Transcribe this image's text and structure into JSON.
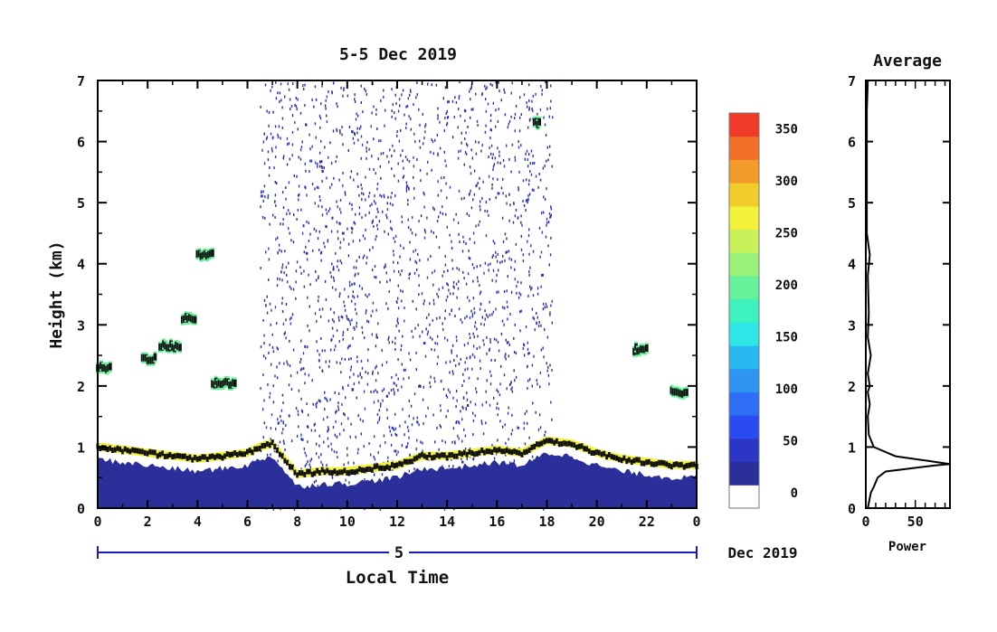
{
  "main_plot": {
    "title": "5-5 Dec 2019",
    "xlabel": "Local Time",
    "ylabel": "Height (km)",
    "day_label": "5",
    "date_suffix": "Dec 2019",
    "x_ticks": [
      "0",
      "2",
      "4",
      "6",
      "8",
      "10",
      "12",
      "14",
      "16",
      "18",
      "20",
      "22",
      "0"
    ],
    "y_ticks": [
      "0",
      "1",
      "2",
      "3",
      "4",
      "5",
      "6",
      "7"
    ]
  },
  "colorbar": {
    "tick_labels": [
      "0",
      "50",
      "100",
      "150",
      "200",
      "250",
      "300",
      "350"
    ],
    "colors": [
      "#ffffff",
      "#2b2f9a",
      "#2b36c4",
      "#2a4bf0",
      "#2f6ff5",
      "#2f94f2",
      "#2ab8f0",
      "#2ee6e6",
      "#3df2bf",
      "#66f29a",
      "#9af27a",
      "#c9f25a",
      "#f2f23a",
      "#f2cc2a",
      "#f29a2a",
      "#f2702a",
      "#f23a2a"
    ]
  },
  "profile_plot": {
    "title": "Average",
    "xlabel": "Power",
    "x_ticks": [
      "0",
      "50"
    ],
    "y_ticks": [
      "0",
      "1",
      "2",
      "3",
      "4",
      "5",
      "6",
      "7"
    ]
  },
  "chart_data": [
    {
      "type": "heatmap",
      "title": "5-5 Dec 2019",
      "xlabel": "Local Time",
      "ylabel": "Height (km)",
      "xlim": [
        0,
        24
      ],
      "ylim": [
        0,
        7
      ],
      "color_range": [
        0,
        380
      ],
      "grid": false,
      "boundary_layer_top_km": {
        "time_h": [
          0,
          1,
          2,
          3,
          4,
          5,
          6,
          6.5,
          7,
          7.5,
          8,
          9,
          10,
          11,
          12,
          13,
          14,
          15,
          16,
          17,
          18,
          19,
          20,
          21,
          22,
          23,
          24
        ],
        "height_km": [
          1.0,
          0.95,
          0.9,
          0.85,
          0.8,
          0.85,
          0.9,
          1.0,
          1.05,
          0.8,
          0.55,
          0.6,
          0.6,
          0.65,
          0.7,
          0.85,
          0.85,
          0.9,
          0.95,
          0.9,
          1.1,
          1.05,
          0.9,
          0.8,
          0.75,
          0.7,
          0.7
        ]
      },
      "elevated_layers": [
        {
          "time_start_h": 0.0,
          "time_end_h": 0.5,
          "height_km": 2.3
        },
        {
          "time_start_h": 1.8,
          "time_end_h": 2.3,
          "height_km": 2.45
        },
        {
          "time_start_h": 2.5,
          "time_end_h": 3.3,
          "height_km": 2.65
        },
        {
          "time_start_h": 3.4,
          "time_end_h": 3.9,
          "height_km": 3.1
        },
        {
          "time_start_h": 4.0,
          "time_end_h": 4.6,
          "height_km": 4.15
        },
        {
          "time_start_h": 4.6,
          "time_end_h": 5.5,
          "height_km": 2.05
        },
        {
          "time_start_h": 17.5,
          "time_end_h": 17.7,
          "height_km": 6.3
        },
        {
          "time_start_h": 21.5,
          "time_end_h": 22.0,
          "height_km": 2.6
        },
        {
          "time_start_h": 23.0,
          "time_end_h": 23.6,
          "height_km": 1.9
        }
      ],
      "noise_region_time_h": [
        6.5,
        18.2
      ]
    },
    {
      "type": "line",
      "title": "Average",
      "xlabel": "Power",
      "xlim": [
        0,
        85
      ],
      "ylim": [
        0,
        7
      ],
      "x": [
        2,
        5,
        8,
        12,
        20,
        45,
        70,
        85,
        60,
        30,
        8,
        3,
        2,
        4,
        2,
        4,
        2,
        5,
        2,
        3,
        2,
        4,
        1,
        1,
        1,
        2
      ],
      "y": [
        0,
        0.25,
        0.35,
        0.5,
        0.6,
        0.65,
        0.7,
        0.72,
        0.78,
        0.85,
        1.0,
        1.2,
        1.5,
        1.7,
        1.9,
        2.0,
        2.2,
        2.5,
        2.8,
        3.2,
        3.8,
        4.15,
        4.5,
        5.5,
        6.5,
        7.0
      ]
    }
  ]
}
